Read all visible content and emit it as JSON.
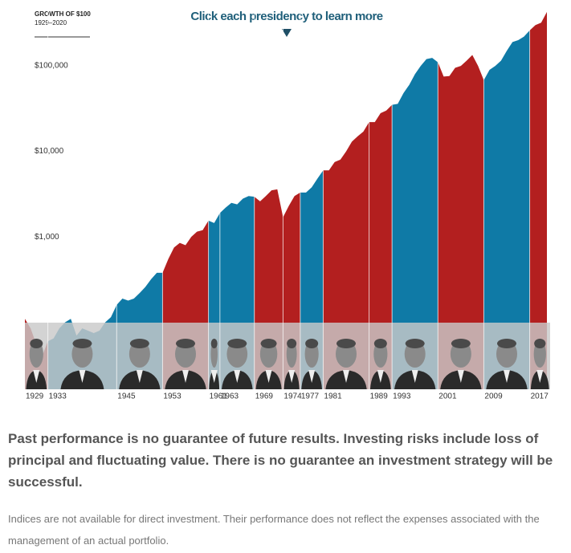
{
  "chart_data": {
    "type": "area",
    "title": "GROWTH OF $100",
    "subtitle": "1929–2020",
    "annotation": "Click each presidency to learn more",
    "log_scale": true,
    "grid": false,
    "x": [
      1929,
      1930,
      1931,
      1932,
      1933,
      1934,
      1935,
      1936,
      1937,
      1938,
      1939,
      1940,
      1941,
      1942,
      1943,
      1944,
      1945,
      1946,
      1947,
      1948,
      1949,
      1950,
      1951,
      1952,
      1953,
      1954,
      1955,
      1956,
      1957,
      1958,
      1959,
      1960,
      1961,
      1962,
      1963,
      1964,
      1965,
      1966,
      1967,
      1968,
      1969,
      1970,
      1971,
      1972,
      1973,
      1974,
      1975,
      1976,
      1977,
      1978,
      1979,
      1980,
      1981,
      1982,
      1983,
      1984,
      1985,
      1986,
      1987,
      1988,
      1989,
      1990,
      1991,
      1992,
      1993,
      1994,
      1995,
      1996,
      1997,
      1998,
      1999,
      2000,
      2001,
      2002,
      2003,
      2004,
      2005,
      2006,
      2007,
      2008,
      2009,
      2010,
      2011,
      2012,
      2013,
      2014,
      2015,
      2016,
      2017,
      2018,
      2019,
      2020
    ],
    "values": [
      110,
      85,
      55,
      40,
      60,
      65,
      85,
      100,
      110,
      70,
      85,
      80,
      75,
      80,
      100,
      115,
      160,
      190,
      180,
      190,
      220,
      260,
      320,
      380,
      380,
      550,
      750,
      850,
      800,
      1000,
      1150,
      1200,
      1550,
      1450,
      1900,
      2200,
      2500,
      2400,
      2800,
      3000,
      2950,
      2600,
      3000,
      3500,
      3600,
      1700,
      2300,
      3000,
      3300,
      3300,
      3800,
      4800,
      6000,
      6000,
      7500,
      8000,
      10000,
      13000,
      15000,
      17000,
      22000,
      22000,
      28000,
      30000,
      35000,
      36000,
      48000,
      60000,
      80000,
      100000,
      120000,
      124000,
      110000,
      75000,
      76000,
      95000,
      100000,
      115000,
      134000,
      100000,
      68000,
      90000,
      100000,
      115000,
      150000,
      190000,
      200000,
      220000,
      260000,
      300000,
      320000,
      427000
    ],
    "xlim": [
      1929,
      2020
    ],
    "xticks": [
      1929,
      1933,
      1945,
      1953,
      1961,
      1963,
      1969,
      1974,
      1977,
      1981,
      1989,
      1993,
      2001,
      2009,
      2017
    ],
    "segment_colors": [
      "#b31f1f",
      "#0f7aa6",
      "#0f7aa6",
      "#b31f1f",
      "#0f7aa6",
      "#0f7aa6",
      "#b31f1f",
      "#b31f1f",
      "#0f7aa6",
      "#b31f1f",
      "#b31f1f",
      "#0f7aa6",
      "#b31f1f",
      "#0f7aa6",
      "#b31f1f"
    ],
    "ylim": [
      16.5,
      475000
    ],
    "yticks": [
      {
        "value": 1000,
        "label": "$1,000"
      },
      {
        "value": 10000,
        "label": "$10,000"
      },
      {
        "value": 100000,
        "label": "$100,000"
      }
    ]
  },
  "disclaimer": "Past performance is no guarantee of future results. Investing risks include loss of principal and fluctuating value. There is no guarantee an investment strategy will be successful.",
  "note": "Indices are not available for direct investment. Their performance does not reflect the expenses associated with the management of an actual portfolio."
}
